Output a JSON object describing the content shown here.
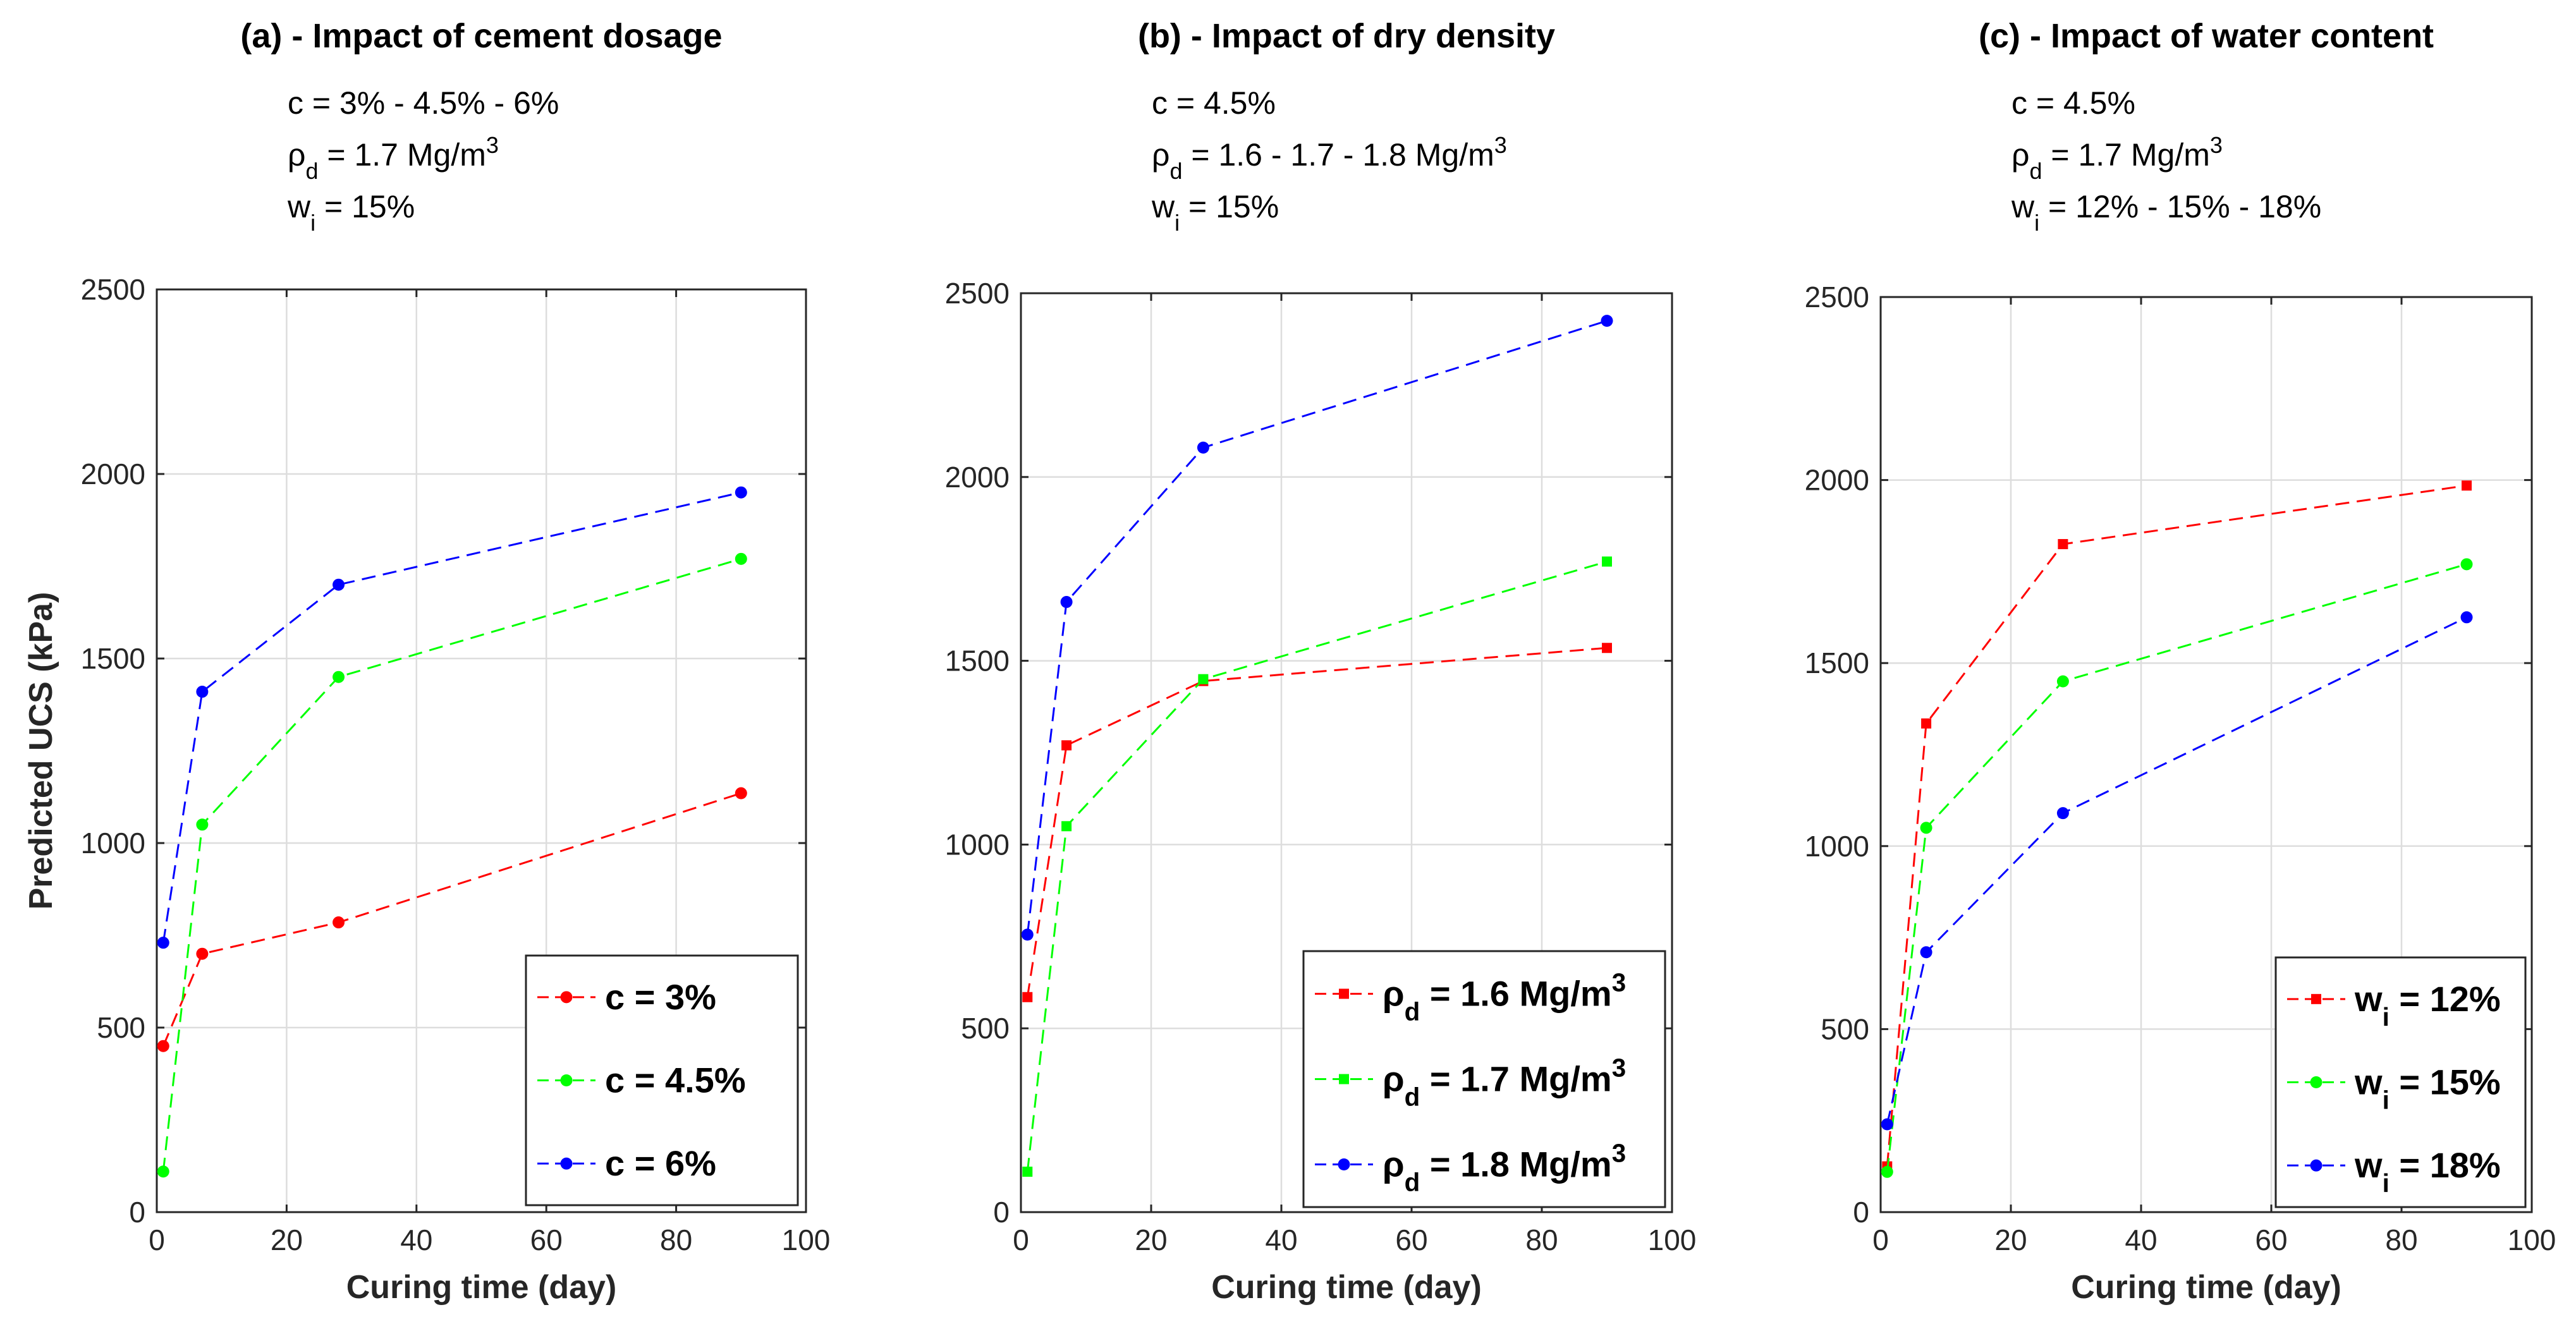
{
  "chart_data": [
    {
      "type": "line",
      "title": "(a) - Impact of cement dosage",
      "notes": [
        "c = 3% - 4.5% - 6%",
        "ρd = 1.7 Mg/m3",
        "wi = 15%"
      ],
      "notes_parts": [
        [
          {
            "t": "c = 3% - 4.5% - 6%"
          }
        ],
        [
          {
            "t": "ρ"
          },
          {
            "t": "d",
            "sub": true
          },
          {
            "t": " = 1.7 Mg/m"
          },
          {
            "t": "3",
            "sup": true
          }
        ],
        [
          {
            "t": "w"
          },
          {
            "t": "i",
            "sub": true
          },
          {
            "t": " = 15%"
          }
        ]
      ],
      "xlabel": "Curing time (day)",
      "ylabel": "Predicted UCS (kPa)",
      "xlim": [
        0,
        100
      ],
      "ylim": [
        0,
        2500
      ],
      "xticks": [
        0,
        20,
        40,
        60,
        80,
        100
      ],
      "yticks": [
        0,
        500,
        1000,
        1500,
        2000,
        2500
      ],
      "grid": true,
      "legend_position": "bottom-right",
      "series": [
        {
          "name": "c = 3%",
          "name_parts": [
            {
              "t": "c = 3%"
            }
          ],
          "color": "#ff0000",
          "marker": "circle",
          "x": [
            1,
            7,
            28,
            90
          ],
          "y": [
            450,
            700,
            785,
            1135
          ]
        },
        {
          "name": "c = 4.5%",
          "name_parts": [
            {
              "t": "c = 4.5%"
            }
          ],
          "color": "#00ff00",
          "marker": "circle",
          "x": [
            1,
            7,
            28,
            90
          ],
          "y": [
            110,
            1050,
            1450,
            1770
          ]
        },
        {
          "name": "c = 6%",
          "name_parts": [
            {
              "t": "c = 6%"
            }
          ],
          "color": "#0000ff",
          "marker": "circle",
          "x": [
            1,
            7,
            28,
            90
          ],
          "y": [
            730,
            1410,
            1700,
            1950
          ]
        }
      ]
    },
    {
      "type": "line",
      "title": "(b) - Impact of dry density",
      "notes": [
        "c = 4.5%",
        "ρd = 1.6 - 1.7 - 1.8 Mg/m3",
        "wi = 15%"
      ],
      "notes_parts": [
        [
          {
            "t": "c = 4.5%"
          }
        ],
        [
          {
            "t": "ρ"
          },
          {
            "t": "d",
            "sub": true
          },
          {
            "t": " = 1.6 - 1.7 - 1.8 Mg/m"
          },
          {
            "t": "3",
            "sup": true
          }
        ],
        [
          {
            "t": "w"
          },
          {
            "t": "i",
            "sub": true
          },
          {
            "t": " = 15%"
          }
        ]
      ],
      "xlabel": "Curing time (day)",
      "ylabel": "",
      "xlim": [
        0,
        100
      ],
      "ylim": [
        0,
        2500
      ],
      "xticks": [
        0,
        20,
        40,
        60,
        80,
        100
      ],
      "yticks": [
        0,
        500,
        1000,
        1500,
        2000,
        2500
      ],
      "grid": true,
      "legend_position": "bottom-right",
      "series": [
        {
          "name": "ρd = 1.6 Mg/m3",
          "name_parts": [
            {
              "t": "ρ"
            },
            {
              "t": "d",
              "sub": true
            },
            {
              "t": " = 1.6 Mg/m"
            },
            {
              "t": "3",
              "sup": true
            }
          ],
          "color": "#ff0000",
          "marker": "square",
          "x": [
            1,
            7,
            28,
            90
          ],
          "y": [
            585,
            1270,
            1445,
            1535
          ]
        },
        {
          "name": "ρd = 1.7 Mg/m3",
          "name_parts": [
            {
              "t": "ρ"
            },
            {
              "t": "d",
              "sub": true
            },
            {
              "t": " = 1.7 Mg/m"
            },
            {
              "t": "3",
              "sup": true
            }
          ],
          "color": "#00ff00",
          "marker": "square",
          "x": [
            1,
            7,
            28,
            90
          ],
          "y": [
            110,
            1050,
            1450,
            1770
          ]
        },
        {
          "name": "ρd = 1.8 Mg/m3",
          "name_parts": [
            {
              "t": "ρ"
            },
            {
              "t": "d",
              "sub": true
            },
            {
              "t": " = 1.8 Mg/m"
            },
            {
              "t": "3",
              "sup": true
            }
          ],
          "color": "#0000ff",
          "marker": "circle",
          "x": [
            1,
            7,
            28,
            90
          ],
          "y": [
            755,
            1660,
            2080,
            2425
          ]
        }
      ]
    },
    {
      "type": "line",
      "title": "(c) - Impact of water content",
      "notes": [
        "c = 4.5%",
        "ρd = 1.7 Mg/m3",
        "wi = 12% - 15% - 18%"
      ],
      "notes_parts": [
        [
          {
            "t": "c = 4.5%"
          }
        ],
        [
          {
            "t": "ρ"
          },
          {
            "t": "d",
            "sub": true
          },
          {
            "t": " = 1.7 Mg/m"
          },
          {
            "t": "3",
            "sup": true
          }
        ],
        [
          {
            "t": "w"
          },
          {
            "t": "i",
            "sub": true
          },
          {
            "t": " = 12% - 15% - 18%"
          }
        ]
      ],
      "xlabel": "Curing time (day)",
      "ylabel": "",
      "xlim": [
        0,
        100
      ],
      "ylim": [
        0,
        2500
      ],
      "xticks": [
        0,
        20,
        40,
        60,
        80,
        100
      ],
      "yticks": [
        0,
        500,
        1000,
        1500,
        2000,
        2500
      ],
      "grid": true,
      "legend_position": "bottom-right",
      "series": [
        {
          "name": "wi = 12%",
          "name_parts": [
            {
              "t": "w"
            },
            {
              "t": "i",
              "sub": true
            },
            {
              "t": " = 12%"
            }
          ],
          "color": "#ff0000",
          "marker": "square",
          "x": [
            1,
            7,
            28,
            90
          ],
          "y": [
            125,
            1335,
            1825,
            1985
          ]
        },
        {
          "name": "wi = 15%",
          "name_parts": [
            {
              "t": "w"
            },
            {
              "t": "i",
              "sub": true
            },
            {
              "t": " = 15%"
            }
          ],
          "color": "#00ff00",
          "marker": "circle",
          "x": [
            1,
            7,
            28,
            90
          ],
          "y": [
            110,
            1050,
            1450,
            1770
          ]
        },
        {
          "name": "wi = 18%",
          "name_parts": [
            {
              "t": "w"
            },
            {
              "t": "i",
              "sub": true
            },
            {
              "t": " = 18%"
            }
          ],
          "color": "#0000ff",
          "marker": "circle",
          "x": [
            1,
            7,
            28,
            90
          ],
          "y": [
            240,
            710,
            1090,
            1625
          ]
        }
      ]
    }
  ]
}
